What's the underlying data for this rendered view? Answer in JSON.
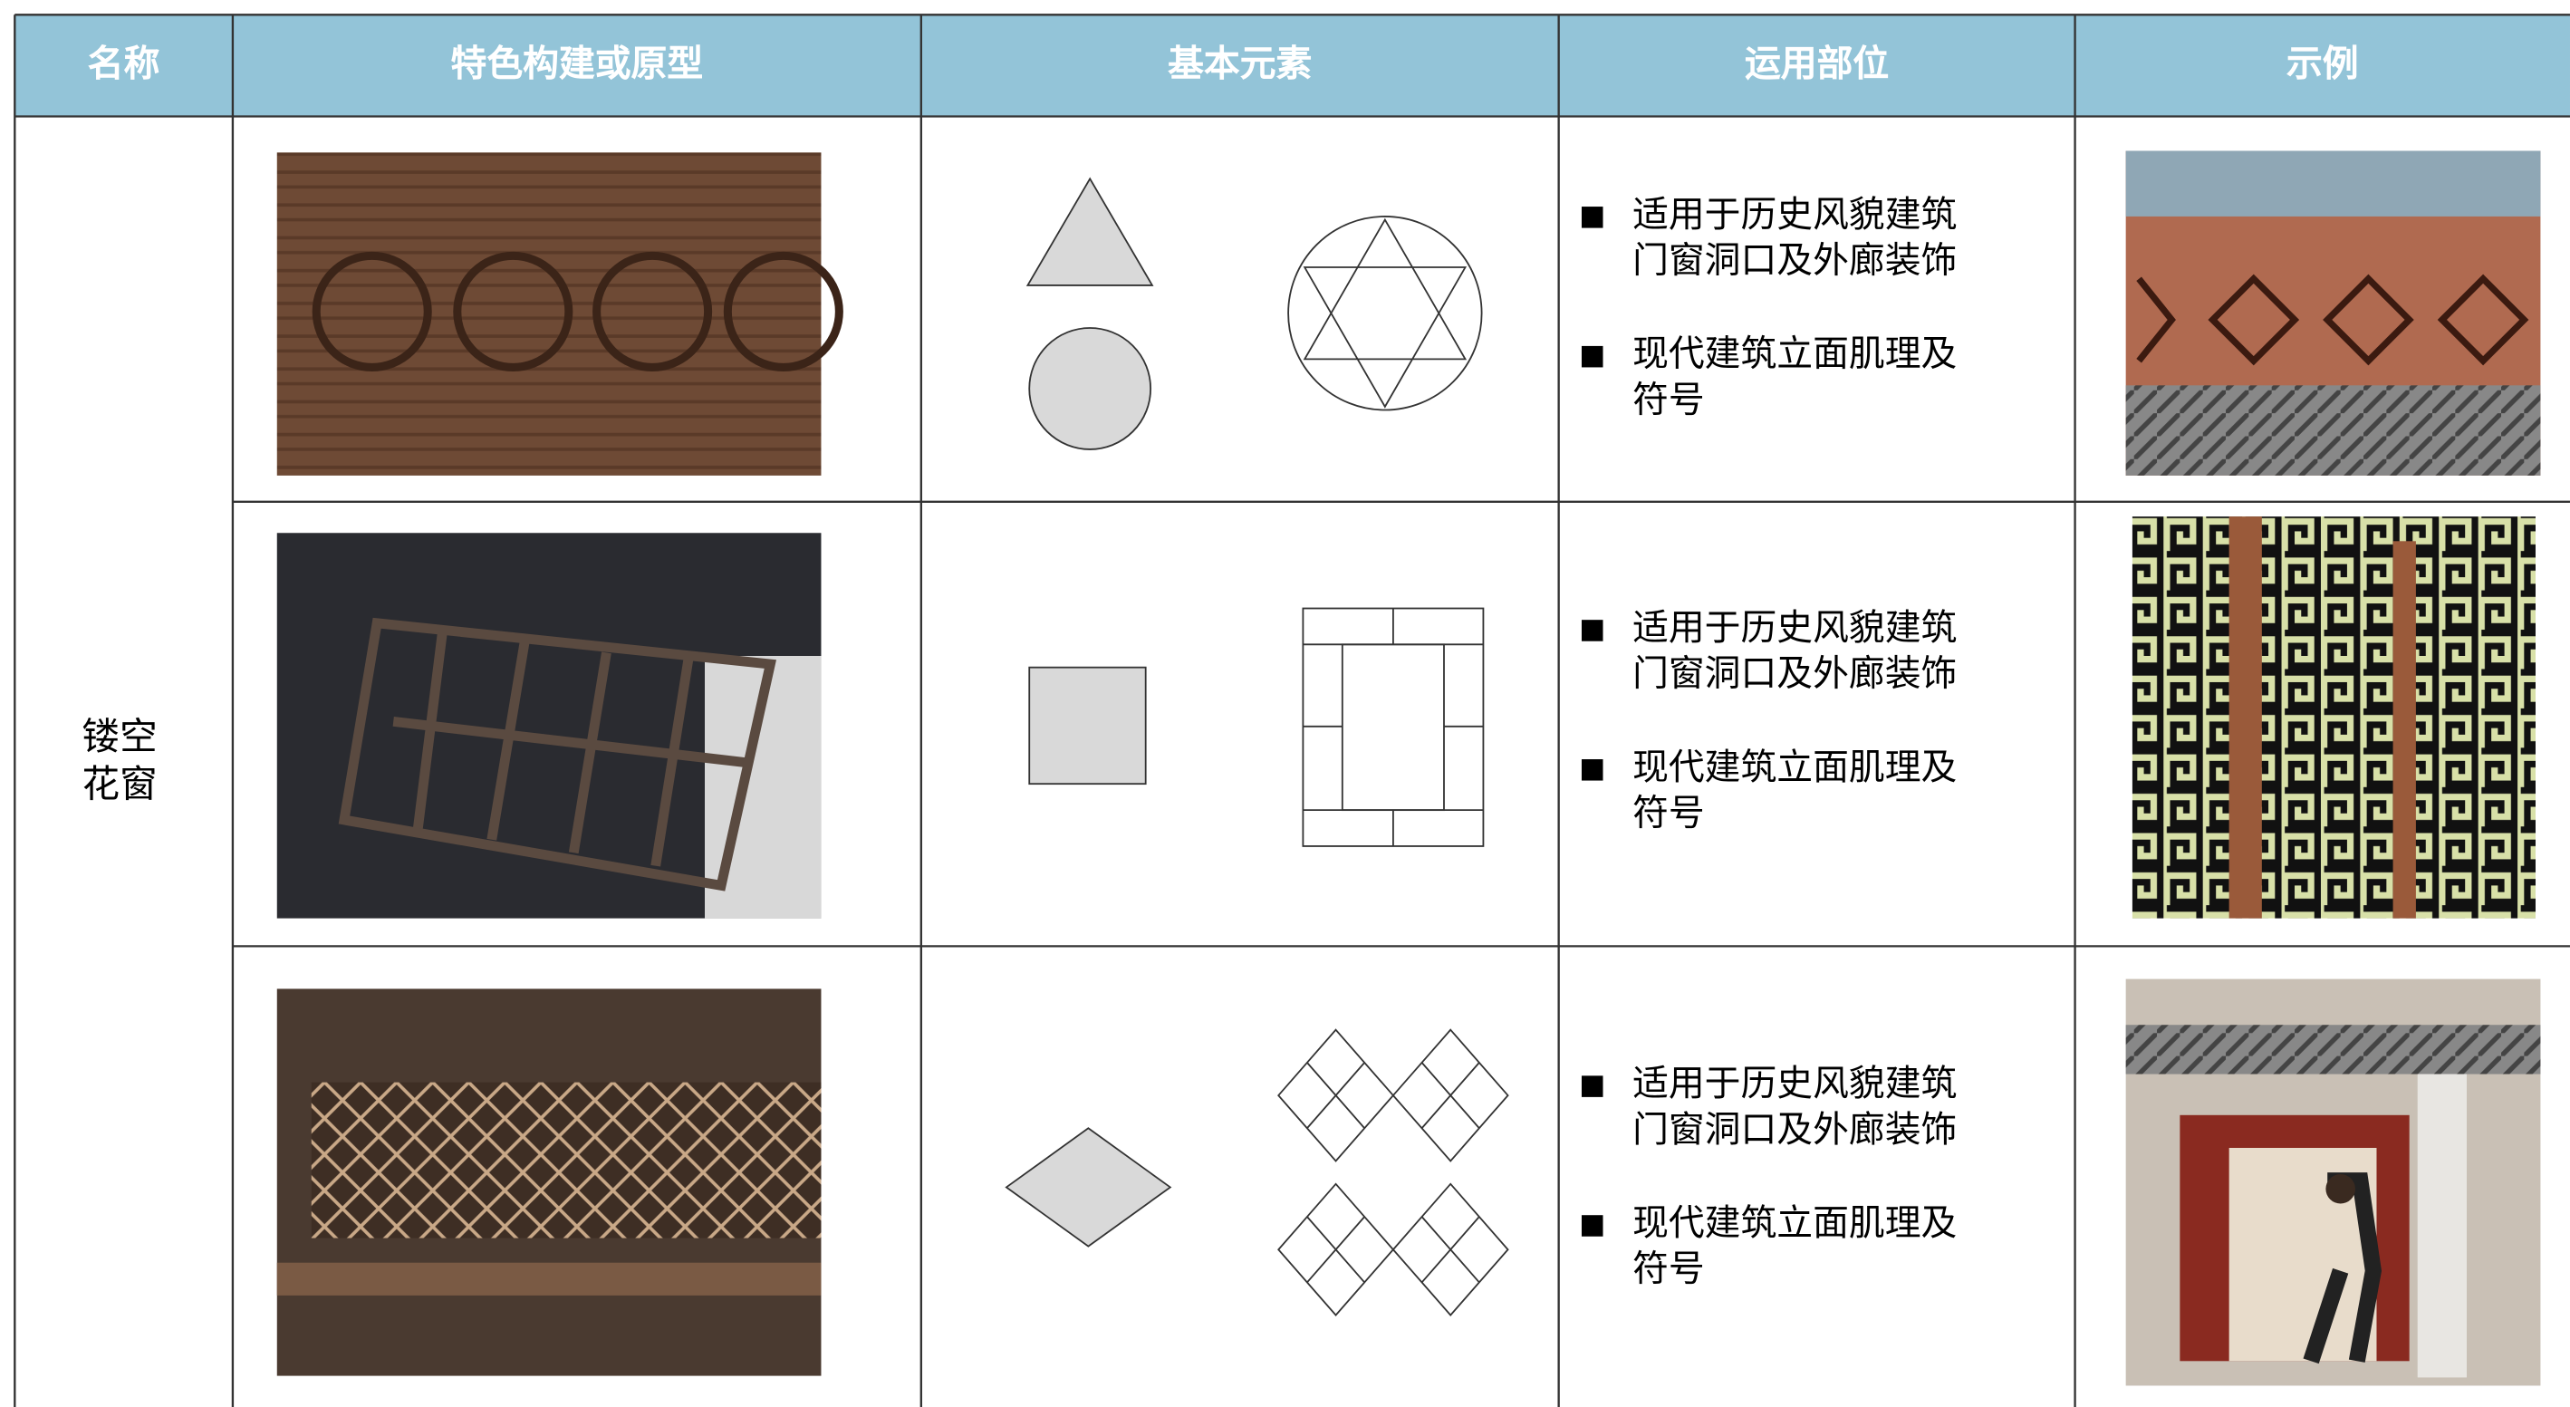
{
  "table": {
    "headers": [
      "名称",
      "特色构建或原型",
      "基本元素",
      "运用部位",
      "示例"
    ],
    "category": "镂空花窗",
    "rows": [
      {
        "usage": [
          "适用于历史风貌建筑门窗洞口及外廊装饰",
          "现代建筑立面肌理及符号"
        ]
      },
      {
        "usage": [
          "适用于历史风貌建筑门窗洞口及外廊装饰",
          "现代建筑立面肌理及符号"
        ]
      },
      {
        "usage": [
          "适用于历史风貌建筑门窗洞口及外廊装饰",
          "现代建筑立面肌理及符号"
        ]
      }
    ]
  }
}
